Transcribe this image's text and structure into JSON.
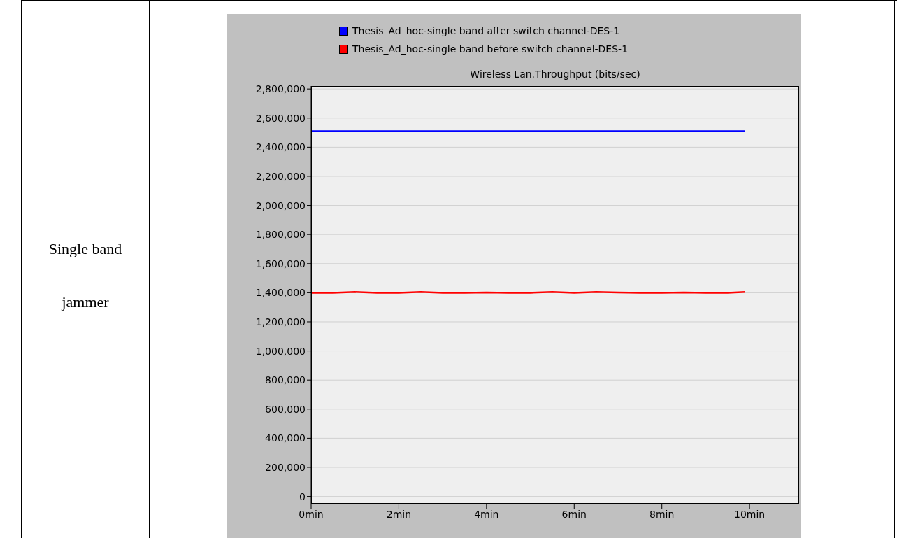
{
  "chart_data": {
    "type": "line",
    "title": "Wireless Lan.Throughput (bits/sec)",
    "annotations": [
      "Single band jammer"
    ],
    "legend": "top",
    "grid": "y",
    "marker": "none",
    "line_style": "solid",
    "xlim": [
      0,
      11.13
    ],
    "xticks": [
      {
        "value": 0,
        "label": "0min"
      },
      {
        "value": 2,
        "label": "2min"
      },
      {
        "value": 4,
        "label": "4min"
      },
      {
        "value": 6,
        "label": "6min"
      },
      {
        "value": 8,
        "label": "8min"
      },
      {
        "value": 10,
        "label": "10min"
      }
    ],
    "ylim": [
      -50000,
      2820000
    ],
    "yticks": [
      0,
      {
        "value": 200000,
        "label": "200,000"
      },
      {
        "value": 400000,
        "label": "400,000"
      },
      {
        "value": 600000,
        "label": "600,000"
      },
      {
        "value": 800000,
        "label": "800,000"
      },
      {
        "value": 1000000,
        "label": "1,000,000"
      },
      {
        "value": 1200000,
        "label": "1,200,000"
      },
      {
        "value": 1400000,
        "label": "1,400,000"
      },
      {
        "value": 1600000,
        "label": "1,600,000"
      },
      {
        "value": 1800000,
        "label": "1,800,000"
      },
      {
        "value": 2000000,
        "label": "2,000,000"
      },
      {
        "value": 2200000,
        "label": "2,200,000"
      },
      {
        "value": 2400000,
        "label": "2,400,000"
      },
      {
        "value": 2600000,
        "label": "2,600,000"
      },
      {
        "value": 2800000,
        "label": "2,800,000"
      }
    ],
    "series": [
      {
        "name": "Thesis_Ad_hoc-single band after switch channel-DES-1",
        "color": "#0000ff",
        "x": [
          0,
          9.9
        ],
        "values": [
          2510000,
          2510000
        ]
      },
      {
        "name": "Thesis_Ad_hoc-single band before switch channel-DES-1",
        "color": "#ff0000",
        "x": [
          0,
          0.5,
          1,
          1.5,
          2,
          2.5,
          3,
          3.5,
          4,
          4.5,
          5,
          5.5,
          6,
          6.5,
          7,
          7.5,
          8,
          8.5,
          9,
          9.5,
          9.9
        ],
        "values": [
          1400000,
          1400000,
          1405000,
          1400000,
          1400000,
          1405000,
          1400000,
          1400000,
          1402000,
          1400000,
          1400000,
          1405000,
          1400000,
          1405000,
          1402000,
          1400000,
          1400000,
          1402000,
          1400000,
          1400000,
          1405000
        ]
      }
    ]
  }
}
